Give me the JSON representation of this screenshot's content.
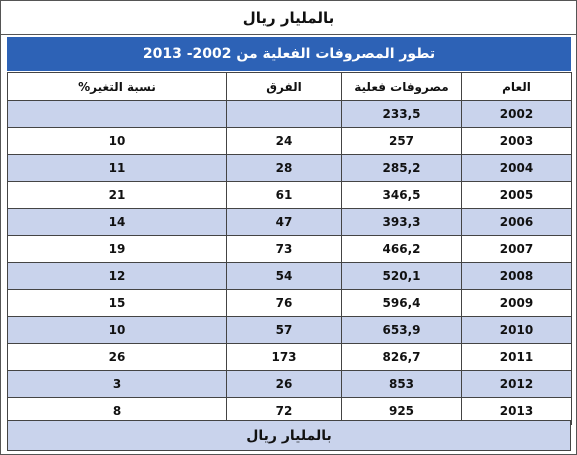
{
  "top_caption": "بالمليار ريال",
  "title": "تطور المصروفات الفعلية من 2002- 2013",
  "columns": [
    "العام",
    "مصروفات فعلية",
    "الفرق",
    "نسبة التغير%"
  ],
  "rows": [
    {
      "year": "2002",
      "actual": "233,5",
      "diff": "",
      "pct": ""
    },
    {
      "year": "2003",
      "actual": "257",
      "diff": "24",
      "pct": "10"
    },
    {
      "year": "2004",
      "actual": "285,2",
      "diff": "28",
      "pct": "11"
    },
    {
      "year": "2005",
      "actual": "346,5",
      "diff": "61",
      "pct": "21"
    },
    {
      "year": "2006",
      "actual": "393,3",
      "diff": "47",
      "pct": "14"
    },
    {
      "year": "2007",
      "actual": "466,2",
      "diff": "73",
      "pct": "19"
    },
    {
      "year": "2008",
      "actual": "520,1",
      "diff": "54",
      "pct": "12"
    },
    {
      "year": "2009",
      "actual": "596,4",
      "diff": "76",
      "pct": "15"
    },
    {
      "year": "2010",
      "actual": "653,9",
      "diff": "57",
      "pct": "10"
    },
    {
      "year": "2011",
      "actual": "826,7",
      "diff": "173",
      "pct": "26"
    },
    {
      "year": "2012",
      "actual": "853",
      "diff": "26",
      "pct": "3"
    },
    {
      "year": "2013",
      "actual": "925",
      "diff": "72",
      "pct": "8"
    }
  ],
  "bottom_caption": "بالمليار ريال",
  "colors": {
    "title_bg": "#2d62b6",
    "shade_row": "#c9d3ec"
  }
}
